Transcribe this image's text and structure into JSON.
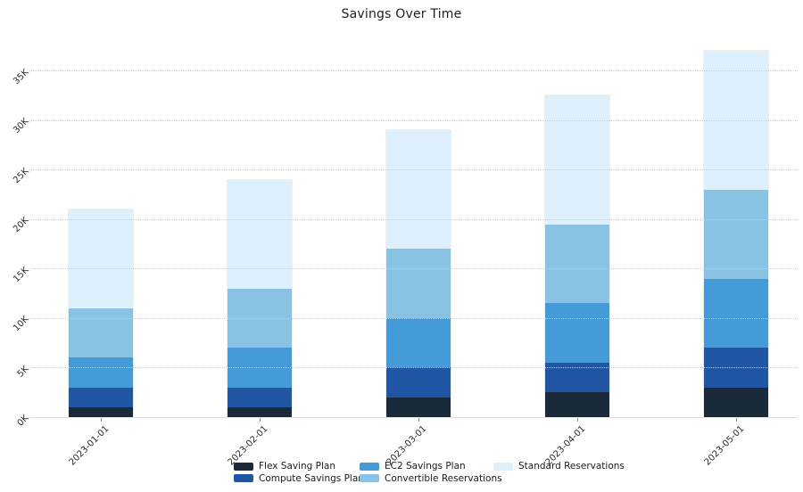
{
  "chart_data": {
    "type": "bar",
    "stacked": true,
    "title": "Savings Over Time",
    "categories": [
      "2023-01-01",
      "2023-02-01",
      "2023-03-01",
      "2023-04-01",
      "2023-05-01"
    ],
    "series": [
      {
        "name": "Flex Saving Plan",
        "color": "#1b2a3b",
        "values": [
          1000,
          1000,
          2000,
          2500,
          3000
        ]
      },
      {
        "name": "Compute Savings Plan",
        "color": "#2156a4",
        "values": [
          2000,
          2000,
          3000,
          3000,
          4000
        ]
      },
      {
        "name": "EC2 Savings Plan",
        "color": "#459ad8",
        "values": [
          3000,
          4000,
          5000,
          6000,
          7000
        ]
      },
      {
        "name": "Convertible Reservations",
        "color": "#89c2e3",
        "values": [
          5000,
          6000,
          7000,
          8000,
          9000
        ]
      },
      {
        "name": "Standard Reservations",
        "color": "#def0fb",
        "values": [
          10000,
          11000,
          12000,
          13000,
          14000
        ]
      }
    ],
    "stack_totals": [
      21000,
      24000,
      29000,
      32500,
      37000
    ],
    "xlabel": "",
    "ylabel": "",
    "ytick_labels": [
      "0K",
      "5K",
      "10K",
      "15K",
      "20K",
      "25K",
      "30K",
      "35K"
    ],
    "ytick_values": [
      0,
      5000,
      10000,
      15000,
      20000,
      25000,
      30000,
      35000
    ],
    "ylim": [
      0,
      37500
    ],
    "grid": "horizontal-dotted",
    "legend_position": "bottom-center",
    "legend_columns": 3
  }
}
